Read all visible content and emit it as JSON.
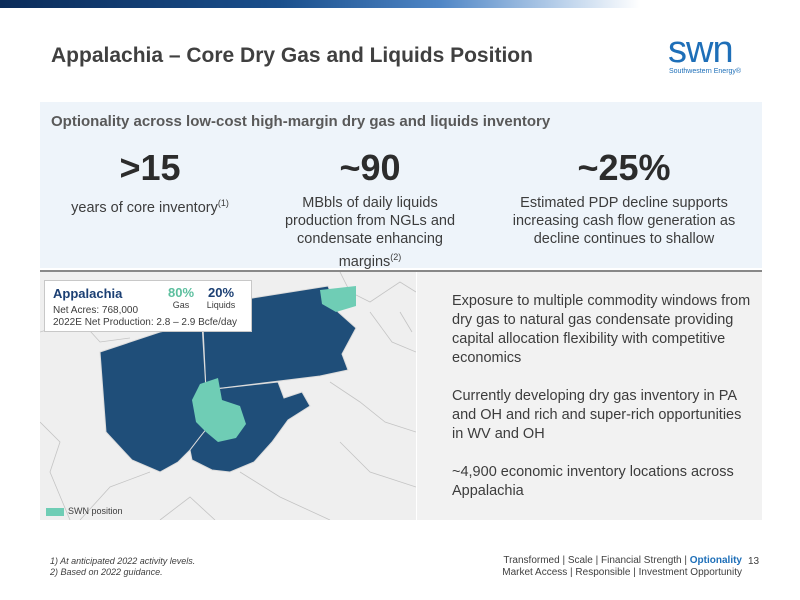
{
  "header": {
    "title": "Appalachia  – Core Dry Gas and Liquids Position",
    "logo_word": "swn",
    "logo_sub": "Southwestern Energy®"
  },
  "band": {
    "subtitle": "Optionality across low-cost high-margin dry gas and liquids inventory",
    "stats": [
      {
        "big": ">15",
        "text": "years of core inventory",
        "sup": "(1)"
      },
      {
        "big": "~90",
        "text": "MBbls of daily liquids production from NGLs and condensate enhancing margins",
        "sup": "(2)"
      },
      {
        "big": "~25%",
        "text": "Estimated PDP decline supports increasing cash flow generation as decline continues to shallow",
        "sup": ""
      }
    ]
  },
  "map": {
    "info_title": "Appalachia",
    "net_acres": "Net Acres: 768,000",
    "net_production": "2022E Net Production: 2.8 – 2.9 Bcfe/day",
    "gas_pct": "80%",
    "gas_label": "Gas",
    "liquids_pct": "20%",
    "liquids_label": "Liquids",
    "legend_label": "SWN position",
    "colors": {
      "state_fill": "#1f4e79",
      "position_fill": "#6fcdb5",
      "gas_text": "#5cbf9e",
      "liquids_text": "#1b3f73"
    }
  },
  "right": {
    "paragraphs": [
      "Exposure to multiple commodity windows from dry gas to natural gas condensate providing capital allocation flexibility with competitive economics",
      "Currently developing dry gas inventory in PA and OH and rich and super-rich opportunities in WV and OH",
      "~4,900 economic inventory locations across Appalachia"
    ]
  },
  "footer": {
    "footnote1": "1) At anticipated 2022 activity levels.",
    "footnote2": "2) Based on 2022 guidance.",
    "nav1_a": "Transformed | Scale | Financial Strength | ",
    "nav1_hl": "Optionality",
    "nav2": "Market Access | Responsible | Investment Opportunity",
    "page": "13"
  }
}
